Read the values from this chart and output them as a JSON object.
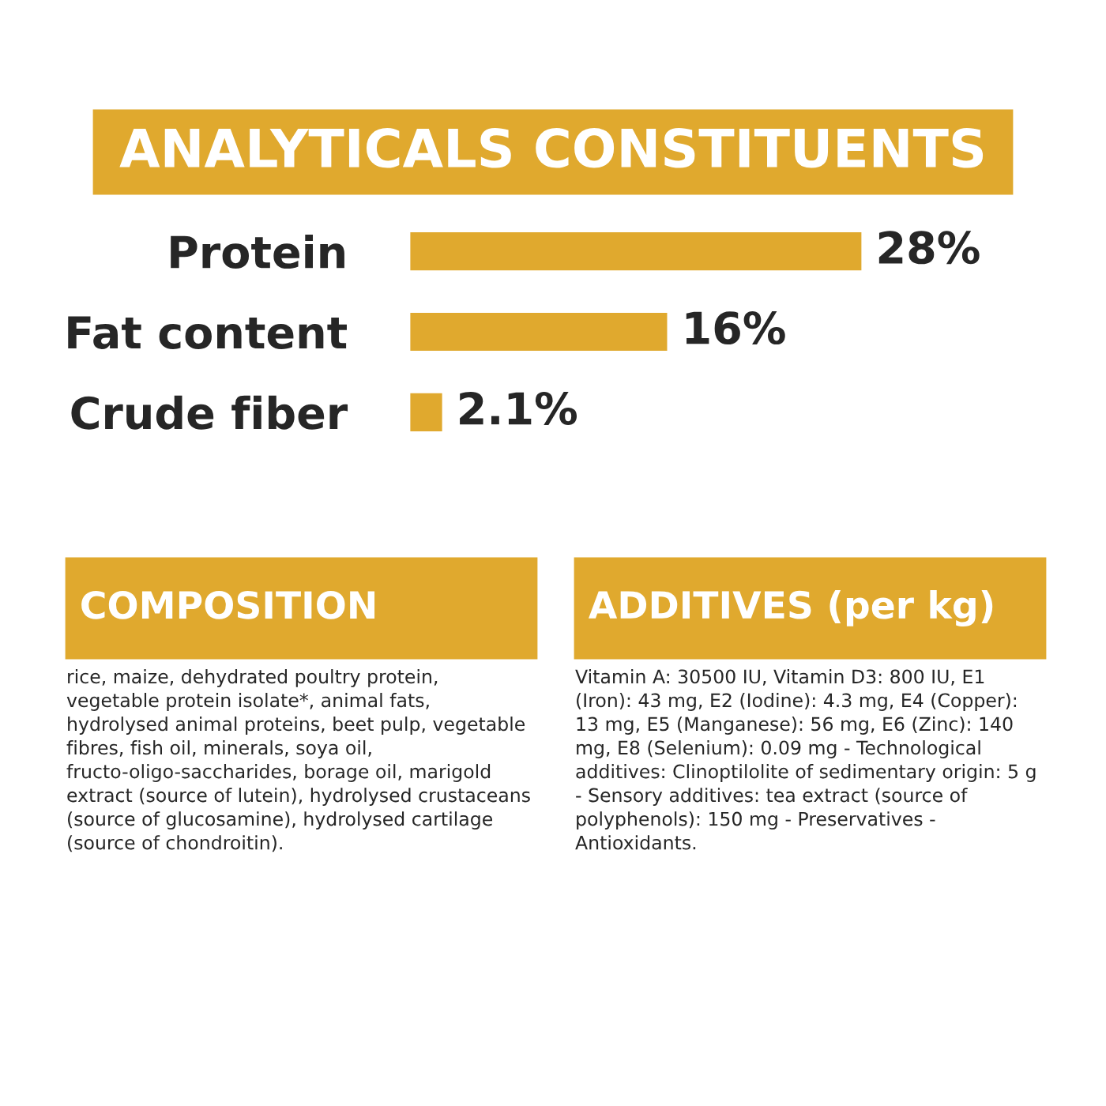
{
  "chart_data": {
    "type": "bar",
    "orientation": "horizontal",
    "title": "ANALYTICALS CONSTITUENTS",
    "categories": [
      "Protein",
      "Fat content",
      "Crude fiber"
    ],
    "values": [
      28,
      16,
      2.1
    ],
    "value_labels": [
      "28%",
      "16%",
      "2.1%"
    ],
    "color": "#e0a92e",
    "annotations": [
      "COMPOSITION",
      "rice, maize, dehydrated poultry protein, vegetable protein isolate*, animal fats, hydrolysed animal proteins, beet pulp, vegetable fibres, fish oil, minerals, soya oil, fructo-oligo-saccharides, borage oil, marigold extract (source of lutein), hydrolysed crustaceans (source of glucosamine), hydrolysed cartilage (source of chondroitin).",
      "ADDITIVES (per kg)",
      "Vitamin A: 30500 IU, Vitamin D3: 800 IU, E1 (Iron): 43 mg, E2 (Iodine): 4.3 mg, E4 (Copper): 13 mg, E5 (Manganese): 56 mg, E6 (Zinc): 140 mg, E8 (Selenium): 0.09 mg - Technological additives: Clinoptilolite of sedimentary origin: 5 g - Sensory additives: tea extract (source of polyphenols): 150 mg - Preservatives - Antioxidants."
    ]
  }
}
